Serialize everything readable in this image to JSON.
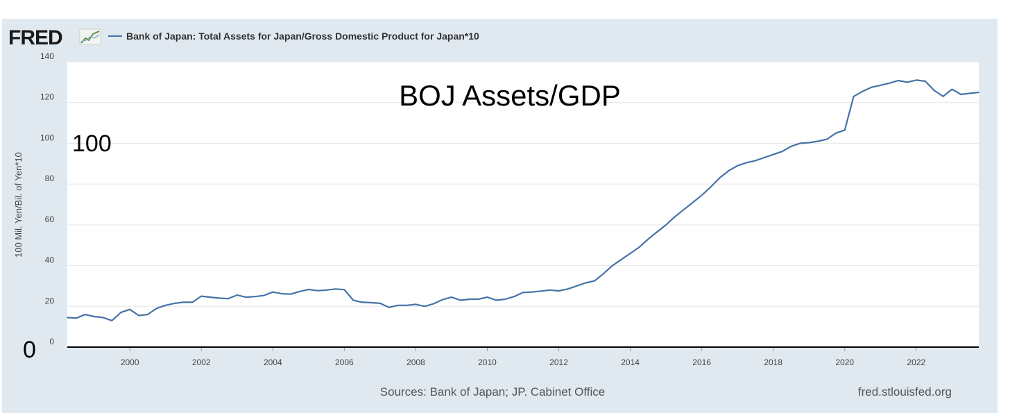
{
  "logo": {
    "text": "FRED",
    "icon": "fred-trend-icon"
  },
  "legend": {
    "label": "Bank of Japan: Total Assets for Japan/Gross Domestic Product for Japan*10",
    "color": "#4572a7"
  },
  "footer": {
    "sources": "Sources: Bank of Japan; JP. Cabinet Office",
    "site": "fred.stlouisfed.org"
  },
  "annotations": {
    "title": "BOJ Assets/GDP",
    "mark_100": "100",
    "mark_0": "0"
  },
  "colors": {
    "line": "#4572a7",
    "panel_bg": "#e1e9f0",
    "plot_bg": "#ffffff",
    "grid": "#e6e6e6",
    "axis": "#000000"
  },
  "chart_data": {
    "type": "line",
    "title": "",
    "xlabel": "",
    "ylabel": "100 Mil. Yen/Bil. of Yen*10",
    "xlim": [
      1998.25,
      2023.75
    ],
    "ylim": [
      0,
      140
    ],
    "grid": true,
    "y_ticks": [
      "0",
      "20",
      "40",
      "60",
      "80",
      "100",
      "120",
      "140"
    ],
    "x_ticks": [
      "2000",
      "2002",
      "2004",
      "2006",
      "2008",
      "2010",
      "2012",
      "2014",
      "2016",
      "2018",
      "2020",
      "2022"
    ],
    "series": [
      {
        "name": "Bank of Japan: Total Assets for Japan/Gross Domestic Product for Japan*10",
        "x": [
          1998.25,
          1998.5,
          1998.75,
          1999.0,
          1999.25,
          1999.5,
          1999.75,
          2000.0,
          2000.25,
          2000.5,
          2000.75,
          2001.0,
          2001.25,
          2001.5,
          2001.75,
          2002.0,
          2002.25,
          2002.5,
          2002.75,
          2003.0,
          2003.25,
          2003.5,
          2003.75,
          2004.0,
          2004.25,
          2004.5,
          2004.75,
          2005.0,
          2005.25,
          2005.5,
          2005.75,
          2006.0,
          2006.25,
          2006.5,
          2006.75,
          2007.0,
          2007.25,
          2007.5,
          2007.75,
          2008.0,
          2008.25,
          2008.5,
          2008.75,
          2009.0,
          2009.25,
          2009.5,
          2009.75,
          2010.0,
          2010.25,
          2010.5,
          2010.75,
          2011.0,
          2011.25,
          2011.5,
          2011.75,
          2012.0,
          2012.25,
          2012.5,
          2012.75,
          2013.0,
          2013.25,
          2013.5,
          2013.75,
          2014.0,
          2014.25,
          2014.5,
          2014.75,
          2015.0,
          2015.25,
          2015.5,
          2015.75,
          2016.0,
          2016.25,
          2016.5,
          2016.75,
          2017.0,
          2017.25,
          2017.5,
          2017.75,
          2018.0,
          2018.25,
          2018.5,
          2018.75,
          2019.0,
          2019.25,
          2019.5,
          2019.75,
          2020.0,
          2020.25,
          2020.5,
          2020.75,
          2021.0,
          2021.25,
          2021.5,
          2021.75,
          2022.0,
          2022.25,
          2022.5,
          2022.75,
          2023.0,
          2023.25,
          2023.5,
          2023.75
        ],
        "values": [
          14.5,
          14.2,
          16.0,
          15.0,
          14.5,
          13.0,
          17.0,
          18.5,
          15.5,
          16.0,
          19.0,
          20.5,
          21.5,
          22.0,
          22.0,
          25.0,
          24.5,
          24.0,
          23.8,
          25.5,
          24.5,
          24.8,
          25.3,
          27.0,
          26.2,
          26.0,
          27.3,
          28.3,
          27.7,
          28.0,
          28.5,
          28.2,
          23.0,
          22.0,
          21.8,
          21.5,
          19.5,
          20.5,
          20.5,
          21.0,
          20.0,
          21.3,
          23.3,
          24.5,
          23.0,
          23.5,
          23.5,
          24.5,
          23.0,
          23.5,
          24.8,
          26.8,
          27.0,
          27.5,
          28.0,
          27.6,
          28.5,
          30.0,
          31.5,
          32.5,
          36.0,
          40.0,
          43.0,
          46.0,
          49.0,
          53.0,
          56.5,
          60.0,
          64.0,
          67.5,
          71.0,
          74.5,
          78.5,
          83.0,
          86.5,
          89.0,
          90.5,
          91.5,
          93.0,
          94.5,
          96.0,
          98.5,
          100.0,
          100.3,
          101.0,
          102.0,
          105.0,
          106.5,
          123.0,
          125.5,
          127.5,
          128.5,
          129.5,
          130.8,
          130.0,
          131.0,
          130.5,
          126.0,
          123.0,
          126.5,
          124.0,
          124.5,
          125.0
        ]
      }
    ]
  }
}
